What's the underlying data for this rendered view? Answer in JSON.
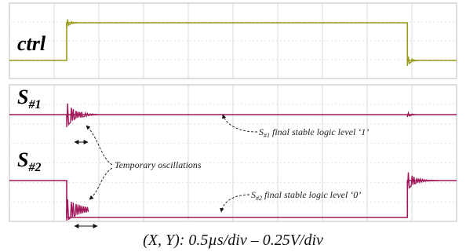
{
  "chart_data": {
    "type": "line",
    "title": "",
    "caption": "(X, Y): 0.5µs/div – 0.25V/div",
    "xlabel": "",
    "ylabel": "",
    "grid": true,
    "divisions_x": 10,
    "panels": [
      {
        "label": "ctrl",
        "label_sub": "",
        "color": "#9a9a1a",
        "series": [
          {
            "x": [
              0.0,
              1.28,
              1.28,
              8.9,
              8.9,
              10.0
            ],
            "y": [
              0,
              0,
              1,
              1,
              0,
              0
            ]
          }
        ]
      },
      {
        "label": "S",
        "label_sub": "#1",
        "color": "#a0185a",
        "series": [
          {
            "x": [
              0.0,
              1.28,
              10.0
            ],
            "y": [
              1,
              1,
              1
            ]
          }
        ]
      },
      {
        "label": "S",
        "label_sub": "#2",
        "color": "#a0185a",
        "series": [
          {
            "x": [
              0.0,
              1.28,
              1.28,
              8.9,
              8.9,
              10.0
            ],
            "y": [
              1,
              1,
              0,
              0,
              1,
              1
            ]
          }
        ]
      }
    ],
    "annotations": [
      {
        "text_main": "S",
        "text_sub": "#1",
        "text_rest": " final stable logic level ‘1’"
      },
      {
        "text_main": "Temporary oscillations"
      },
      {
        "text_main": "S",
        "text_sub": "#2",
        "text_rest": " final stable logic level ‘0’"
      }
    ]
  }
}
